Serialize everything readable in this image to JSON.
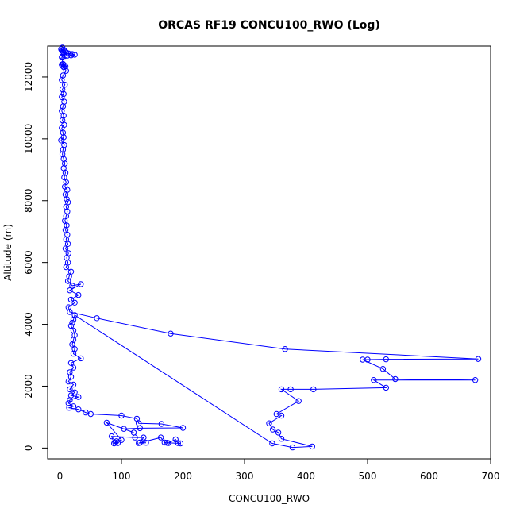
{
  "chart_data": {
    "type": "scatter",
    "title": "ORCAS RF19 CONCU100_RWO (Log)",
    "xlabel": "CONCU100_RWO",
    "ylabel": "Altitude (m)",
    "xlim": [
      -20,
      700
    ],
    "ylim": [
      -350,
      13000
    ],
    "x_ticks": [
      0,
      100,
      200,
      300,
      400,
      500,
      600,
      700
    ],
    "y_ticks": [
      0,
      2000,
      4000,
      6000,
      8000,
      10000,
      12000
    ],
    "color": "#0000ff",
    "marker": "open-circle",
    "connected": true,
    "legend": "none",
    "grid": false,
    "series": [
      {
        "points": [
          [
            4,
            12950
          ],
          [
            2,
            12900
          ],
          [
            6,
            12880
          ],
          [
            3,
            12860
          ],
          [
            8,
            12840
          ],
          [
            5,
            12820
          ],
          [
            10,
            12800
          ],
          [
            4,
            12780
          ],
          [
            14,
            12760
          ],
          [
            20,
            12740
          ],
          [
            24,
            12720
          ],
          [
            18,
            12700
          ],
          [
            12,
            12690
          ],
          [
            8,
            12680
          ],
          [
            4,
            12660
          ],
          [
            3,
            12640
          ],
          [
            5,
            12420
          ],
          [
            3,
            12400
          ],
          [
            7,
            12380
          ],
          [
            4,
            12360
          ],
          [
            9,
            12340
          ],
          [
            6,
            12320
          ],
          [
            10,
            12200
          ],
          [
            5,
            12050
          ],
          [
            3,
            11900
          ],
          [
            8,
            11750
          ],
          [
            4,
            11600
          ],
          [
            6,
            11450
          ],
          [
            3,
            11350
          ],
          [
            7,
            11200
          ],
          [
            5,
            11050
          ],
          [
            3,
            10900
          ],
          [
            6,
            10750
          ],
          [
            4,
            10600
          ],
          [
            7,
            10450
          ],
          [
            3,
            10350
          ],
          [
            5,
            10200
          ],
          [
            6,
            10050
          ],
          [
            2,
            9950
          ],
          [
            7,
            9800
          ],
          [
            5,
            9650
          ],
          [
            4,
            9500
          ],
          [
            6,
            9350
          ],
          [
            8,
            9200
          ],
          [
            6,
            9050
          ],
          [
            9,
            8900
          ],
          [
            7,
            8750
          ],
          [
            10,
            8600
          ],
          [
            8,
            8450
          ],
          [
            12,
            8350
          ],
          [
            9,
            8200
          ],
          [
            11,
            8050
          ],
          [
            13,
            7950
          ],
          [
            10,
            7800
          ],
          [
            12,
            7650
          ],
          [
            10,
            7500
          ],
          [
            8,
            7350
          ],
          [
            11,
            7200
          ],
          [
            9,
            7050
          ],
          [
            12,
            6900
          ],
          [
            10,
            6750
          ],
          [
            13,
            6600
          ],
          [
            9,
            6450
          ],
          [
            14,
            6300
          ],
          [
            11,
            6150
          ],
          [
            13,
            6000
          ],
          [
            10,
            5850
          ],
          [
            18,
            5700
          ],
          [
            15,
            5550
          ],
          [
            13,
            5400
          ],
          [
            20,
            5250
          ],
          [
            34,
            5300
          ],
          [
            16,
            5100
          ],
          [
            30,
            4950
          ],
          [
            18,
            4800
          ],
          [
            24,
            4700
          ],
          [
            14,
            4550
          ],
          [
            16,
            4400
          ],
          [
            60,
            4200
          ],
          [
            180,
            3700
          ],
          [
            366,
            3200
          ],
          [
            680,
            2880
          ],
          [
            530,
            2870
          ],
          [
            500,
            2860
          ],
          [
            492,
            2860
          ],
          [
            525,
            2560
          ],
          [
            545,
            2230
          ],
          [
            675,
            2200
          ],
          [
            510,
            2200
          ],
          [
            530,
            1950
          ],
          [
            412,
            1900
          ],
          [
            375,
            1900
          ],
          [
            360,
            1900
          ],
          [
            388,
            1520
          ],
          [
            352,
            1100
          ],
          [
            360,
            1050
          ],
          [
            340,
            800
          ],
          [
            346,
            600
          ],
          [
            355,
            500
          ],
          [
            360,
            300
          ],
          [
            410,
            50
          ],
          [
            378,
            20
          ],
          [
            345,
            150
          ],
          [
            24,
            4300
          ],
          [
            22,
            4150
          ],
          [
            20,
            4050
          ],
          [
            18,
            3950
          ],
          [
            22,
            3800
          ],
          [
            24,
            3650
          ],
          [
            22,
            3500
          ],
          [
            20,
            3350
          ],
          [
            24,
            3200
          ],
          [
            22,
            3050
          ],
          [
            34,
            2900
          ],
          [
            18,
            2750
          ],
          [
            22,
            2600
          ],
          [
            16,
            2450
          ],
          [
            18,
            2300
          ],
          [
            14,
            2150
          ],
          [
            22,
            2050
          ],
          [
            16,
            1900
          ],
          [
            24,
            1800
          ],
          [
            18,
            1700
          ],
          [
            30,
            1650
          ],
          [
            16,
            1550
          ],
          [
            14,
            1450
          ],
          [
            22,
            1350
          ],
          [
            15,
            1300
          ],
          [
            30,
            1250
          ],
          [
            42,
            1150
          ],
          [
            50,
            1100
          ],
          [
            100,
            1050
          ],
          [
            125,
            950
          ],
          [
            128,
            800
          ],
          [
            165,
            780
          ],
          [
            200,
            650
          ],
          [
            130,
            640
          ],
          [
            104,
            620
          ],
          [
            120,
            500
          ],
          [
            76,
            820
          ],
          [
            100,
            260
          ],
          [
            92,
            220
          ],
          [
            90,
            180
          ],
          [
            94,
            160
          ],
          [
            88,
            150
          ],
          [
            84,
            380
          ],
          [
            122,
            340
          ],
          [
            136,
            340
          ],
          [
            130,
            180
          ],
          [
            140,
            170
          ],
          [
            128,
            160
          ],
          [
            164,
            340
          ],
          [
            170,
            180
          ],
          [
            176,
            160
          ],
          [
            188,
            280
          ],
          [
            192,
            160
          ],
          [
            196,
            150
          ],
          [
            174,
            170
          ]
        ]
      }
    ]
  }
}
